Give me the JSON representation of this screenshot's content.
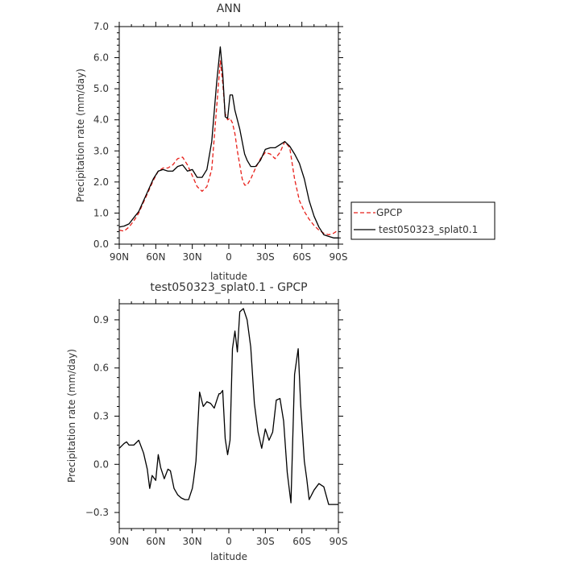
{
  "chart_data": [
    {
      "type": "line",
      "title": "ANN",
      "xlabel": "latitude",
      "ylabel": "Precipitation rate (mm/day)",
      "xlim": [
        -90,
        90
      ],
      "ylim": [
        0,
        7
      ],
      "x_axis_note": "x values are latitude in degrees: negative = north, positive = south, as printed on the tick labels",
      "xticks": [
        -90,
        -60,
        -30,
        0,
        30,
        60,
        90
      ],
      "xtick_labels": [
        "90N",
        "60N",
        "30N",
        "0",
        "30S",
        "60S",
        "90S"
      ],
      "yticks": [
        0,
        1,
        2,
        3,
        4,
        5,
        6,
        7
      ],
      "ytick_labels": [
        "0.0",
        "1.0",
        "2.0",
        "3.0",
        "4.0",
        "5.0",
        "6.0",
        "7.0"
      ],
      "grid": false,
      "legend": "right",
      "series": [
        {
          "name": "GPCP",
          "color": "#e8201a",
          "dash": "dashed",
          "x": [
            -90,
            -86,
            -82,
            -78,
            -74,
            -70,
            -66,
            -62,
            -58,
            -54,
            -50,
            -46,
            -42,
            -38,
            -34,
            -30,
            -26,
            -22,
            -18,
            -14,
            -10,
            -7,
            -5,
            -3,
            -1,
            1,
            3,
            5,
            7,
            9,
            11,
            13,
            15,
            18,
            22,
            26,
            30,
            34,
            38,
            42,
            46,
            50,
            54,
            58,
            62,
            66,
            70,
            74,
            78,
            82,
            86,
            90
          ],
          "y": [
            0.45,
            0.42,
            0.55,
            0.75,
            1.0,
            1.35,
            1.7,
            2.05,
            2.35,
            2.45,
            2.45,
            2.55,
            2.75,
            2.8,
            2.55,
            2.2,
            1.85,
            1.7,
            1.85,
            2.4,
            4.4,
            5.9,
            5.2,
            4.2,
            4.0,
            4.05,
            3.9,
            3.55,
            3.0,
            2.55,
            2.1,
            1.9,
            1.9,
            2.1,
            2.45,
            2.75,
            2.95,
            2.9,
            2.75,
            2.95,
            3.3,
            3.1,
            2.1,
            1.4,
            1.05,
            0.8,
            0.6,
            0.45,
            0.35,
            0.3,
            0.35,
            0.45
          ]
        },
        {
          "name": "test050323_splat0.1",
          "color": "#000000",
          "dash": "solid",
          "x": [
            -90,
            -86,
            -82,
            -78,
            -74,
            -70,
            -66,
            -62,
            -58,
            -54,
            -50,
            -46,
            -42,
            -38,
            -34,
            -30,
            -26,
            -22,
            -18,
            -14,
            -10,
            -7,
            -5,
            -3,
            -1,
            1,
            3,
            5,
            7,
            9,
            11,
            13,
            15,
            18,
            22,
            26,
            30,
            34,
            38,
            42,
            46,
            50,
            54,
            58,
            62,
            66,
            70,
            74,
            78,
            82,
            86,
            90
          ],
          "y": [
            0.55,
            0.58,
            0.65,
            0.85,
            1.05,
            1.4,
            1.75,
            2.1,
            2.35,
            2.4,
            2.35,
            2.35,
            2.5,
            2.55,
            2.35,
            2.4,
            2.15,
            2.15,
            2.4,
            3.3,
            5.2,
            6.35,
            5.5,
            4.1,
            4.05,
            4.8,
            4.8,
            4.3,
            4.0,
            3.7,
            3.3,
            2.9,
            2.7,
            2.5,
            2.5,
            2.7,
            3.05,
            3.1,
            3.1,
            3.2,
            3.3,
            3.15,
            2.9,
            2.6,
            2.1,
            1.4,
            0.9,
            0.55,
            0.3,
            0.25,
            0.2,
            0.2
          ]
        }
      ]
    },
    {
      "type": "line",
      "title": "test050323_splat0.1 - GPCP",
      "xlabel": "latitude",
      "ylabel": "Precipitation rate (mm/day)",
      "xlim": [
        -90,
        90
      ],
      "ylim": [
        -0.4,
        1.0
      ],
      "x_axis_note": "x values are latitude in degrees: negative = north, positive = south, as printed on the tick labels",
      "xticks": [
        -90,
        -60,
        -30,
        0,
        30,
        60,
        90
      ],
      "xtick_labels": [
        "90N",
        "60N",
        "30N",
        "0",
        "30S",
        "60S",
        "90S"
      ],
      "yticks": [
        -0.3,
        0,
        0.3,
        0.6,
        0.9
      ],
      "ytick_labels": [
        "−0.3",
        "0.0",
        "0.3",
        "0.6",
        "0.9"
      ],
      "grid": false,
      "series": [
        {
          "color": "#000000",
          "dash": "solid",
          "x": [
            -90,
            -86,
            -84,
            -82,
            -78,
            -74,
            -70,
            -67,
            -65,
            -63,
            -60,
            -58,
            -56,
            -53,
            -50,
            -48,
            -45,
            -42,
            -39,
            -36,
            -33,
            -30,
            -29,
            -27,
            -24,
            -21,
            -18,
            -15,
            -12,
            -9,
            -8,
            -7,
            -5,
            -3,
            -1,
            1,
            3,
            5,
            7,
            9,
            12,
            15,
            18,
            21,
            24,
            27,
            30,
            33,
            36,
            39,
            42,
            45,
            48,
            51,
            54,
            57,
            59,
            62,
            64,
            66,
            70,
            74,
            78,
            82,
            86,
            88,
            90
          ],
          "y": [
            0.1,
            0.13,
            0.14,
            0.12,
            0.12,
            0.15,
            0.07,
            -0.03,
            -0.15,
            -0.07,
            -0.1,
            0.06,
            -0.02,
            -0.09,
            -0.03,
            -0.04,
            -0.15,
            -0.19,
            -0.21,
            -0.22,
            -0.22,
            -0.15,
            -0.1,
            0.02,
            0.45,
            0.36,
            0.39,
            0.38,
            0.35,
            0.42,
            0.44,
            0.44,
            0.46,
            0.16,
            0.06,
            0.15,
            0.72,
            0.83,
            0.7,
            0.95,
            0.97,
            0.9,
            0.73,
            0.38,
            0.2,
            0.1,
            0.22,
            0.15,
            0.2,
            0.4,
            0.41,
            0.27,
            -0.05,
            -0.24,
            0.56,
            0.72,
            0.37,
            0.02,
            -0.09,
            -0.22,
            -0.16,
            -0.12,
            -0.14,
            -0.25,
            -0.25,
            -0.25,
            -0.25
          ]
        }
      ]
    }
  ]
}
